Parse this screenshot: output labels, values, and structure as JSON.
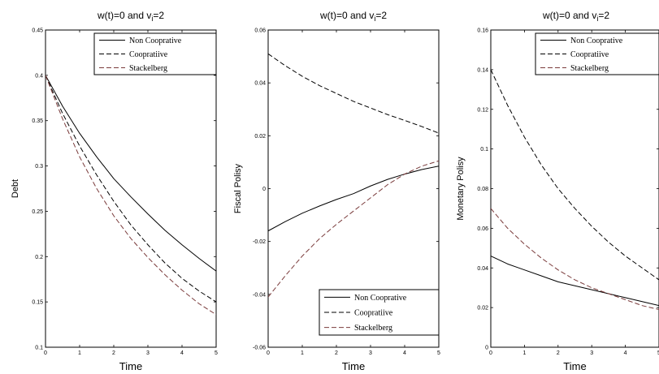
{
  "chart_data": [
    {
      "type": "line",
      "title": "w(t)=0 and v",
      "title_sub": "i",
      "title_tail": "=2",
      "xlabel": "Time",
      "ylabel": "Debt",
      "xlim": [
        0,
        5
      ],
      "ylim": [
        0.1,
        0.45
      ],
      "xticks": [
        "0",
        "1",
        "2",
        "3",
        "4",
        "5"
      ],
      "yticks": [
        "0.1",
        "0.15",
        "0.2",
        "0.25",
        "0.3",
        "0.35",
        "0.4",
        "0.45"
      ],
      "legend_position": "top-right",
      "x": [
        0,
        0.5,
        1,
        1.5,
        2,
        2.5,
        3,
        3.5,
        4,
        4.5,
        5
      ],
      "series": [
        {
          "name": "Non Cooprative",
          "dash": "solid",
          "color": "#000000",
          "values": [
            0.4,
            0.366,
            0.336,
            0.31,
            0.286,
            0.266,
            0.247,
            0.229,
            0.213,
            0.198,
            0.184
          ]
        },
        {
          "name": "Coopratiive",
          "dash": "dashed",
          "color": "#000000",
          "values": [
            0.4,
            0.358,
            0.322,
            0.29,
            0.261,
            0.235,
            0.213,
            0.193,
            0.176,
            0.162,
            0.15
          ]
        },
        {
          "name": "Stackelberg",
          "dash": "dashed",
          "color": "#7a3b3b",
          "values": [
            0.4,
            0.352,
            0.31,
            0.275,
            0.245,
            0.22,
            0.199,
            0.18,
            0.163,
            0.148,
            0.136
          ]
        }
      ]
    },
    {
      "type": "line",
      "title": "w(t)=0 and v",
      "title_sub": "i",
      "title_tail": "=2",
      "xlabel": "Time",
      "ylabel": "Fiscal Polisy",
      "xlim": [
        0,
        5
      ],
      "ylim": [
        -0.06,
        0.06
      ],
      "xticks": [
        "0",
        "1",
        "2",
        "3",
        "4",
        "5"
      ],
      "yticks": [
        "-0.06",
        "-0.04",
        "-0.02",
        "0",
        "0.02",
        "0.04",
        "0.06"
      ],
      "legend_position": "bottom-right",
      "x": [
        0,
        0.5,
        1,
        1.5,
        2,
        2.5,
        3,
        3.5,
        4,
        4.5,
        5
      ],
      "series": [
        {
          "name": "Non Cooprative",
          "dash": "solid",
          "color": "#000000",
          "values": [
            -0.016,
            -0.0125,
            -0.0093,
            -0.0066,
            -0.0041,
            -0.0019,
            0.001,
            0.0035,
            0.0055,
            0.0072,
            0.0085
          ]
        },
        {
          "name": "Coopratiive",
          "dash": "dashed",
          "color": "#000000",
          "values": [
            0.051,
            0.0465,
            0.0425,
            0.039,
            0.036,
            0.033,
            0.0305,
            0.028,
            0.0258,
            0.0235,
            0.021
          ]
        },
        {
          "name": "Stackelberg",
          "dash": "dashed",
          "color": "#7a3b3b",
          "values": [
            -0.041,
            -0.033,
            -0.0255,
            -0.019,
            -0.0135,
            -0.0085,
            -0.0035,
            0.0015,
            0.0055,
            0.0085,
            0.0105
          ]
        }
      ]
    },
    {
      "type": "line",
      "title": "w(t)=0 and v",
      "title_sub": "i",
      "title_tail": "=2",
      "xlabel": "Time",
      "ylabel": "Monetary Polisy",
      "xlim": [
        0,
        5
      ],
      "ylim": [
        0,
        0.16
      ],
      "xticks": [
        "0",
        "1",
        "2",
        "3",
        "4",
        "5"
      ],
      "yticks": [
        "0",
        "0.02",
        "0.04",
        "0.06",
        "0.08",
        "0.1",
        "0.12",
        "0.14",
        "0.16"
      ],
      "legend_position": "top-right",
      "x": [
        0,
        0.5,
        1,
        1.5,
        2,
        2.5,
        3,
        3.5,
        4,
        4.5,
        5
      ],
      "series": [
        {
          "name": "Non Cooprative",
          "dash": "solid",
          "color": "#000000",
          "values": [
            0.046,
            0.042,
            0.039,
            0.036,
            0.033,
            0.031,
            0.029,
            0.027,
            0.025,
            0.023,
            0.021
          ]
        },
        {
          "name": "Coopratiive",
          "dash": "dashed",
          "color": "#000000",
          "values": [
            0.14,
            0.122,
            0.106,
            0.092,
            0.08,
            0.07,
            0.061,
            0.053,
            0.046,
            0.04,
            0.034
          ]
        },
        {
          "name": "Stackelberg",
          "dash": "dashed",
          "color": "#7a3b3b",
          "values": [
            0.07,
            0.06,
            0.052,
            0.045,
            0.039,
            0.034,
            0.03,
            0.027,
            0.024,
            0.021,
            0.019
          ]
        }
      ]
    }
  ]
}
